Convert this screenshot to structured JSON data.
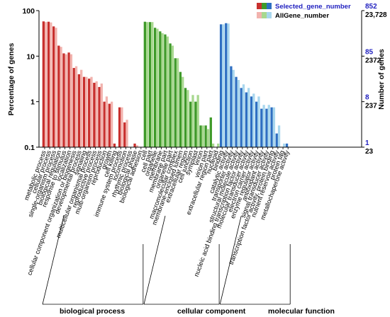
{
  "chart_data": {
    "type": "bar",
    "y_axis_left": {
      "label": "Percentage of genes",
      "scale": "log",
      "ylim": [
        0.1,
        100
      ],
      "ticks": [
        "100",
        "10",
        "1",
        "0.1"
      ]
    },
    "y_axis_right": {
      "label": "Number of genes",
      "ticks": [
        {
          "selected": "852",
          "all": "23,728"
        },
        {
          "selected": "85",
          "all": "2372"
        },
        {
          "selected": "8",
          "all": "237"
        },
        {
          "selected": "1",
          "all": "23"
        }
      ]
    },
    "legend": {
      "placement": "top-right",
      "entries": [
        {
          "label": "Selected_gene_number",
          "color_text": "#1f1fbf"
        },
        {
          "label": "AllGene_number",
          "color_text": "#000000"
        }
      ]
    },
    "series": [
      {
        "name": "Selected_gene_number",
        "role": "selected"
      },
      {
        "name": "AllGene_number",
        "role": "all"
      }
    ],
    "groups": [
      {
        "name": "biological process",
        "colors": {
          "selected": "#c8302e",
          "all": "#f2b3ae"
        }
      },
      {
        "name": "cellular component",
        "colors": {
          "selected": "#3f9a2a",
          "all": "#a8d88f"
        }
      },
      {
        "name": "molecular function",
        "colors": {
          "selected": "#2e6fc2",
          "all": "#a9d7ee"
        }
      }
    ],
    "categories": [
      {
        "group": 0,
        "label": "metabolic process",
        "selected": 58,
        "all": 56
      },
      {
        "group": 0,
        "label": "cellular process",
        "selected": 57,
        "all": 55
      },
      {
        "group": 0,
        "label": "single-organism process",
        "selected": 45,
        "all": 42
      },
      {
        "group": 0,
        "label": "biological regulation",
        "selected": 17,
        "all": 16
      },
      {
        "group": 0,
        "label": "response to stimulus",
        "selected": 11.5,
        "all": 11
      },
      {
        "group": 0,
        "label": "localization",
        "selected": 12,
        "all": 11
      },
      {
        "group": 0,
        "label": "cellular component organization or biogenesis",
        "selected": 5.5,
        "all": 6
      },
      {
        "group": 0,
        "label": "developmental process",
        "selected": 4,
        "all": 5
      },
      {
        "group": 0,
        "label": "signaling",
        "selected": 3.5,
        "all": 3.5
      },
      {
        "group": 0,
        "label": "multicellular organismal process",
        "selected": 3.2,
        "all": 3.5
      },
      {
        "group": 0,
        "label": "reproductive process",
        "selected": 2.6,
        "all": 2.8
      },
      {
        "group": 0,
        "label": "multi-organism process",
        "selected": 2.1,
        "all": 2.5
      },
      {
        "group": 0,
        "label": "reproduction",
        "selected": 1,
        "all": 1.3
      },
      {
        "group": 0,
        "label": "growth",
        "selected": 0.9,
        "all": 1.0
      },
      {
        "group": 0,
        "label": "cell killing",
        "selected": 0.12,
        "all": 0
      },
      {
        "group": 0,
        "label": "immune system process",
        "selected": 0.75,
        "all": 0.75
      },
      {
        "group": 0,
        "label": "locomotion",
        "selected": 0.35,
        "all": 0.4
      },
      {
        "group": 0,
        "label": "rhythmic process",
        "selected": 0,
        "all": 0
      },
      {
        "group": 0,
        "label": "biological phase",
        "selected": 0.12,
        "all": 0.11
      },
      {
        "group": 0,
        "label": "biological adhesion",
        "selected": 0,
        "all": 0
      },
      {
        "group": 1,
        "label": "cell",
        "selected": 57,
        "all": 56
      },
      {
        "group": 1,
        "label": "cell part",
        "selected": 56,
        "all": 56
      },
      {
        "group": 1,
        "label": "organelle",
        "selected": 42,
        "all": 40
      },
      {
        "group": 1,
        "label": "membrane",
        "selected": 35,
        "all": 32
      },
      {
        "group": 1,
        "label": "membrane part",
        "selected": 30,
        "all": 27
      },
      {
        "group": 1,
        "label": "organelle part",
        "selected": 19,
        "all": 17
      },
      {
        "group": 1,
        "label": "macromolecular complex",
        "selected": 9,
        "all": 9
      },
      {
        "group": 1,
        "label": "membrane-enclosed lumen",
        "selected": 4.5,
        "all": 3.5
      },
      {
        "group": 1,
        "label": "extracellular region",
        "selected": 2,
        "all": 1.8
      },
      {
        "group": 1,
        "label": "cell junction",
        "selected": 1,
        "all": 1.4
      },
      {
        "group": 1,
        "label": "symplast",
        "selected": 1,
        "all": 1.4
      },
      {
        "group": 1,
        "label": "virion",
        "selected": 0.3,
        "all": 0.3
      },
      {
        "group": 1,
        "label": "virion part",
        "selected": 0.3,
        "all": 0.25
      },
      {
        "group": 1,
        "label": "extracellular region part",
        "selected": 0.45,
        "all": 0.12
      },
      {
        "group": 1,
        "label": "nucleoid",
        "selected": 0,
        "all": 0.12
      },
      {
        "group": 2,
        "label": "binding",
        "selected": 50,
        "all": 50
      },
      {
        "group": 2,
        "label": "catalytic activity",
        "selected": 53,
        "all": 52
      },
      {
        "group": 2,
        "label": "transporter activity",
        "selected": 6,
        "all": 5
      },
      {
        "group": 2,
        "label": "structural molecule activity",
        "selected": 3.5,
        "all": 3
      },
      {
        "group": 2,
        "label": "nucleic acid binding transcription factor activity",
        "selected": 2,
        "all": 2.4
      },
      {
        "group": 2,
        "label": "molecular transducer activity",
        "selected": 1.6,
        "all": 2
      },
      {
        "group": 2,
        "label": "electron carrier activity",
        "selected": 1.3,
        "all": 1.5
      },
      {
        "group": 2,
        "label": "enzyme regulator activity",
        "selected": 1,
        "all": 1.3
      },
      {
        "group": 2,
        "label": "antioxidant activity",
        "selected": 0.7,
        "all": 0.85
      },
      {
        "group": 2,
        "label": "signal transducer activity",
        "selected": 0.7,
        "all": 0.85
      },
      {
        "group": 2,
        "label": "transcription factor activity, protein binding",
        "selected": 0.75,
        "all": 0.75
      },
      {
        "group": 2,
        "label": "nutrient reservoir activity",
        "selected": 0.2,
        "all": 0.3
      },
      {
        "group": 2,
        "label": "protein tag",
        "selected": 0,
        "all": 0.12
      },
      {
        "group": 2,
        "label": "metallochaperone activity",
        "selected": 0.12,
        "all": 0
      }
    ]
  }
}
